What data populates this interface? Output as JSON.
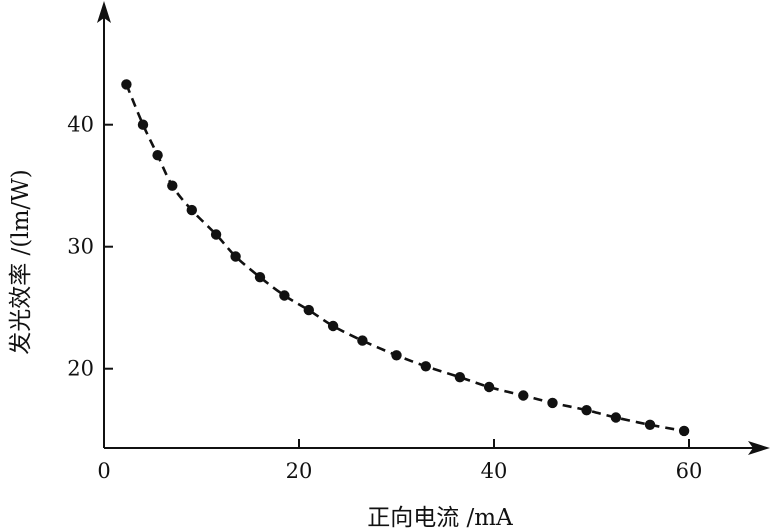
{
  "chart_data": {
    "type": "scatter",
    "xlabel": "正向电流 /mA",
    "ylabel": "发光效率 /(lm/W)",
    "xlim": [
      0,
      67
    ],
    "ylim": [
      13.5,
      53
    ],
    "x_ticks": [
      0,
      20,
      40,
      60
    ],
    "y_ticks": [
      20,
      30,
      40
    ],
    "grid": false,
    "marker": "filled-circle",
    "fit_line": "dashed",
    "color": "#111111",
    "series": [
      {
        "x": [
          2.3,
          4.0,
          5.5,
          7.0,
          9.0,
          11.5,
          13.5,
          16.0,
          18.5,
          21.0,
          23.5,
          26.5,
          30.0,
          33.0,
          36.5,
          39.5,
          43.0,
          46.0,
          49.5,
          52.5,
          56.0,
          59.5
        ],
        "y": [
          43.3,
          40.0,
          37.5,
          35.0,
          33.0,
          31.0,
          29.2,
          27.5,
          26.0,
          24.8,
          23.5,
          22.3,
          21.1,
          20.2,
          19.3,
          18.5,
          17.8,
          17.2,
          16.6,
          16.0,
          15.4,
          14.9
        ]
      }
    ]
  }
}
